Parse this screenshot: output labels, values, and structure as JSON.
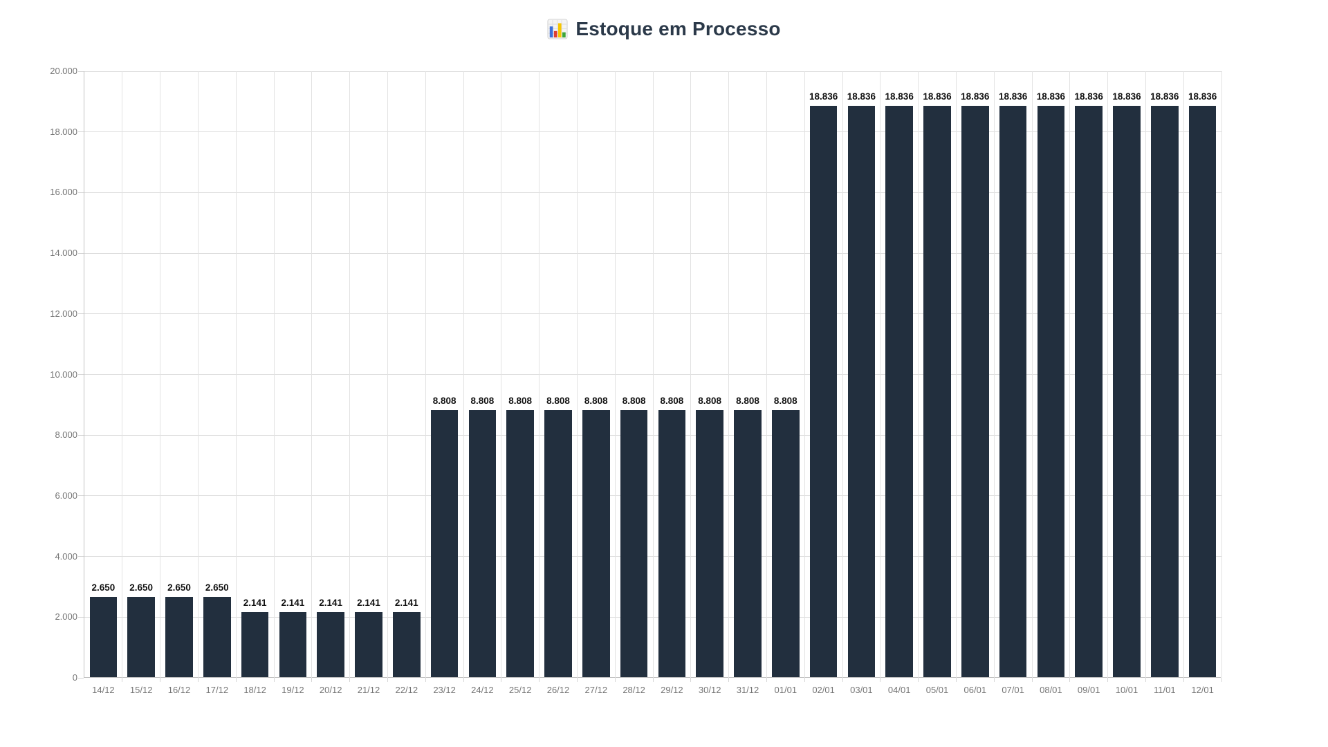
{
  "header": {
    "title": "Estoque em Processo",
    "icon": "bar-chart-emoji"
  },
  "appearance": {
    "background": "#ffffff",
    "bar_color": "#222f3e",
    "title_color": "#2b3949",
    "value_label_color": "#111111",
    "tick_label_color": "#757575",
    "grid_color": "#dedede",
    "axis_line_color": "#c2c2c2"
  },
  "chart_data": {
    "type": "bar",
    "title": "Estoque em Processo",
    "xlabel": "",
    "ylabel": "",
    "legend": "none",
    "grid": true,
    "ylim": [
      0,
      20000
    ],
    "y_tick_step": 2000,
    "y_tick_labels": [
      "0",
      "2.000",
      "4.000",
      "6.000",
      "8.000",
      "10.000",
      "12.000",
      "14.000",
      "16.000",
      "18.000",
      "20.000"
    ],
    "categories": [
      "14/12",
      "15/12",
      "16/12",
      "17/12",
      "18/12",
      "19/12",
      "20/12",
      "21/12",
      "22/12",
      "23/12",
      "24/12",
      "25/12",
      "26/12",
      "27/12",
      "28/12",
      "29/12",
      "30/12",
      "31/12",
      "01/01",
      "02/01",
      "03/01",
      "04/01",
      "05/01",
      "06/01",
      "07/01",
      "08/01",
      "09/01",
      "10/01",
      "11/01",
      "12/01"
    ],
    "values": [
      2650,
      2650,
      2650,
      2650,
      2141,
      2141,
      2141,
      2141,
      2141,
      8808,
      8808,
      8808,
      8808,
      8808,
      8808,
      8808,
      8808,
      8808,
      8808,
      18836,
      18836,
      18836,
      18836,
      18836,
      18836,
      18836,
      18836,
      18836,
      18836,
      18836
    ],
    "value_labels": [
      "2.650",
      "2.650",
      "2.650",
      "2.650",
      "2.141",
      "2.141",
      "2.141",
      "2.141",
      "2.141",
      "8.808",
      "8.808",
      "8.808",
      "8.808",
      "8.808",
      "8.808",
      "8.808",
      "8.808",
      "8.808",
      "8.808",
      "18.836",
      "18.836",
      "18.836",
      "18.836",
      "18.836",
      "18.836",
      "18.836",
      "18.836",
      "18.836",
      "18.836",
      "18.836"
    ]
  }
}
